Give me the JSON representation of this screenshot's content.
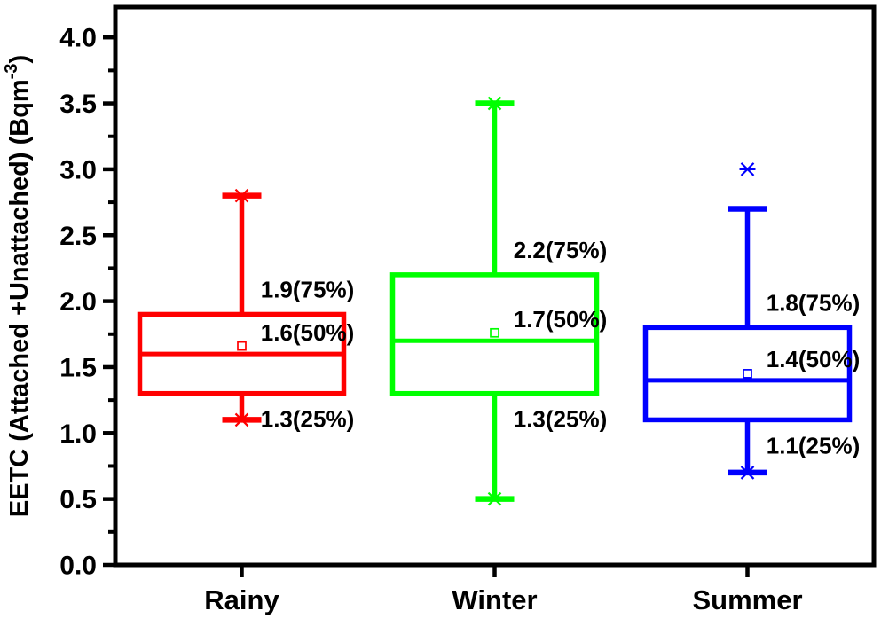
{
  "figure": {
    "background": "#ffffff",
    "frame_color": "#000000"
  },
  "chart_data": {
    "type": "boxplot",
    "title": "",
    "xlabel": "",
    "ylabel": "EETC (Attached +Unattached) (Bqm⁻³)",
    "ylabel_main": "EETC (Attached +Unattached) (Bqm",
    "ylabel_superscript": "-3",
    "ylabel_close": ")",
    "categories": [
      "Rainy",
      "Winter",
      "Summer"
    ],
    "axes": {
      "ylim": [
        0,
        4.23
      ],
      "yticks": [
        "0.0",
        "0.5",
        "1.0",
        "1.5",
        "2.0",
        "2.5",
        "3.0",
        "3.5",
        "4.0"
      ],
      "minor_tick_interval": 0.25,
      "grid": false,
      "legend": "none",
      "tick_direction": "out"
    },
    "series": [
      {
        "name": "Rainy",
        "color": "#ff0000",
        "q1": 1.3,
        "median": 1.6,
        "q3": 1.9,
        "whisker_low": 1.1,
        "whisker_high": 2.8,
        "mean": 1.66,
        "extremes": [
          1.1,
          2.8
        ],
        "outliers": [],
        "labels": {
          "q3": "1.9(75%)",
          "median": "1.6(50%)",
          "q1": "1.3(25%)"
        }
      },
      {
        "name": "Winter",
        "color": "#00ff00",
        "q1": 1.3,
        "median": 1.7,
        "q3": 2.2,
        "whisker_low": 0.5,
        "whisker_high": 3.5,
        "mean": 1.76,
        "extremes": [
          0.5,
          3.5
        ],
        "outliers": [],
        "labels": {
          "q3": "2.2(75%)",
          "median": "1.7(50%)",
          "q1": "1.3(25%)"
        }
      },
      {
        "name": "Summer",
        "color": "#0000ff",
        "q1": 1.1,
        "median": 1.4,
        "q3": 1.8,
        "whisker_low": 0.7,
        "whisker_high": 2.7,
        "mean": 1.45,
        "extremes": [
          0.7
        ],
        "outliers": [
          3.0
        ],
        "labels": {
          "q3": "1.8(75%)",
          "median": "1.4(50%)",
          "q1": "1.1(25%)"
        }
      }
    ]
  }
}
